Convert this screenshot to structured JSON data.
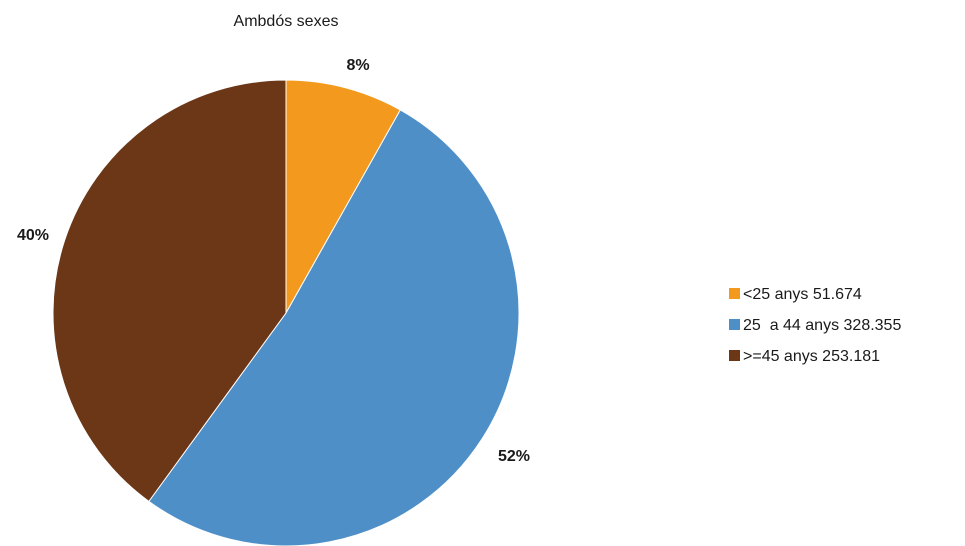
{
  "chart_data": {
    "type": "pie",
    "title": "Ambdós sexes",
    "legend_position": "right",
    "slices": [
      {
        "label": "<25 anys 51.674",
        "value": 51674,
        "percent_label": "8%",
        "color": "#F39A1E"
      },
      {
        "label": "25  a 44 anys 328.355",
        "value": 328355,
        "percent_label": "52%",
        "color": "#4F8FC8"
      },
      {
        "label": ">=45 anys 253.181",
        "value": 253181,
        "percent_label": "40%",
        "color": "#6B3717"
      }
    ]
  }
}
